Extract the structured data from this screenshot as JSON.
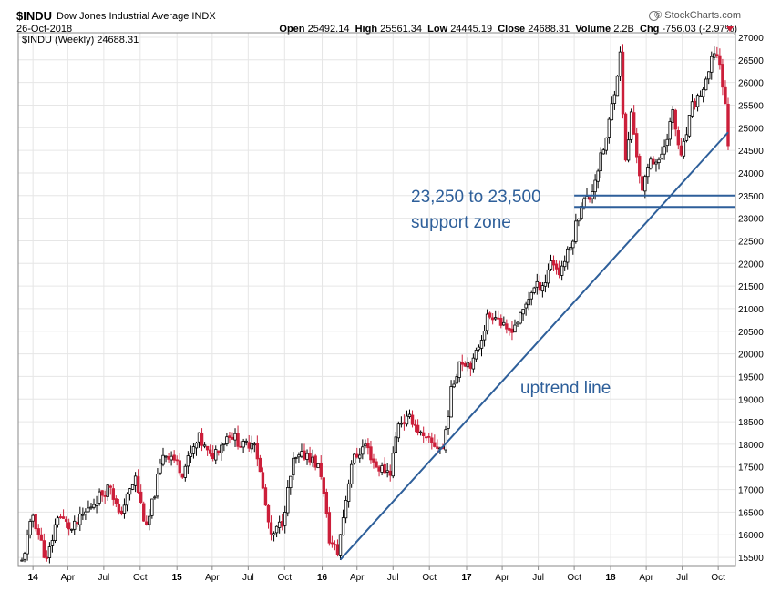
{
  "header": {
    "symbol": "$INDU",
    "name": "Dow Jones Industrial Average INDX",
    "date": "26-Oct-2018",
    "brand": "© StockCharts.com",
    "stats": [
      {
        "label": "Open",
        "value": "25492.14"
      },
      {
        "label": "High",
        "value": "25561.34"
      },
      {
        "label": "Low",
        "value": "24445.19"
      },
      {
        "label": "Close",
        "value": "24688.31"
      },
      {
        "label": "Volume",
        "value": "2.2B"
      },
      {
        "label": "Chg",
        "value": "-756.03 (-2.97%)"
      }
    ]
  },
  "colors": {
    "up": "#000000",
    "down": "#cc1f3a",
    "annotation": "#2e5f9a",
    "grid": "#e6e6e6"
  },
  "chart_data": {
    "type": "candlestick",
    "legend": "$INDU (Weekly) 24688.31",
    "ylim": [
      15300,
      27100
    ],
    "y_ticks": [
      15500,
      16000,
      16500,
      17000,
      17500,
      18000,
      18500,
      19000,
      19500,
      20000,
      20500,
      21000,
      21500,
      22000,
      22500,
      23000,
      23500,
      24000,
      24500,
      25000,
      25500,
      26000,
      26500,
      27000
    ],
    "x_range": [
      "2013-12-06",
      "2018-10-26"
    ],
    "x_ticks": [
      {
        "label": "14",
        "date": "2014-01-03"
      },
      {
        "label": "Apr",
        "date": "2014-04-01"
      },
      {
        "label": "Jul",
        "date": "2014-07-01"
      },
      {
        "label": "Oct",
        "date": "2014-10-01"
      },
      {
        "label": "15",
        "date": "2015-01-02"
      },
      {
        "label": "Apr",
        "date": "2015-04-01"
      },
      {
        "label": "Jul",
        "date": "2015-07-01"
      },
      {
        "label": "Oct",
        "date": "2015-10-01"
      },
      {
        "label": "16",
        "date": "2016-01-04"
      },
      {
        "label": "Apr",
        "date": "2016-04-01"
      },
      {
        "label": "Jul",
        "date": "2016-07-01"
      },
      {
        "label": "Oct",
        "date": "2016-10-01"
      },
      {
        "label": "17",
        "date": "2017-01-03"
      },
      {
        "label": "Apr",
        "date": "2017-04-03"
      },
      {
        "label": "Jul",
        "date": "2017-07-03"
      },
      {
        "label": "Oct",
        "date": "2017-10-02"
      },
      {
        "label": "18",
        "date": "2018-01-02"
      },
      {
        "label": "Apr",
        "date": "2018-04-02"
      },
      {
        "label": "Jul",
        "date": "2018-07-02"
      },
      {
        "label": "Oct",
        "date": "2018-10-01"
      }
    ],
    "price_path": [
      [
        "2013-12-06",
        15400
      ],
      [
        "2014-01-03",
        16440
      ],
      [
        "2014-02-07",
        15400
      ],
      [
        "2014-03-07",
        16450
      ],
      [
        "2014-04-11",
        16100
      ],
      [
        "2014-06-13",
        16800
      ],
      [
        "2014-07-18",
        17100
      ],
      [
        "2014-08-08",
        16400
      ],
      [
        "2014-09-19",
        17250
      ],
      [
        "2014-10-17",
        16100
      ],
      [
        "2014-11-28",
        17800
      ],
      [
        "2014-12-19",
        17750
      ],
      [
        "2015-01-16",
        17400
      ],
      [
        "2015-02-27",
        18130
      ],
      [
        "2015-03-27",
        17700
      ],
      [
        "2015-05-15",
        18250
      ],
      [
        "2015-06-19",
        17950
      ],
      [
        "2015-07-17",
        18100
      ],
      [
        "2015-08-28",
        15900
      ],
      [
        "2015-09-25",
        16300
      ],
      [
        "2015-10-23",
        17600
      ],
      [
        "2015-11-27",
        17800
      ],
      [
        "2015-12-31",
        17425
      ],
      [
        "2016-01-22",
        15900
      ],
      [
        "2016-02-12",
        15600
      ],
      [
        "2016-03-18",
        17600
      ],
      [
        "2016-04-22",
        18000
      ],
      [
        "2016-05-20",
        17500
      ],
      [
        "2016-06-24",
        17400
      ],
      [
        "2016-07-15",
        18500
      ],
      [
        "2016-08-19",
        18550
      ],
      [
        "2016-09-16",
        18100
      ],
      [
        "2016-11-04",
        17900
      ],
      [
        "2016-11-25",
        19150
      ],
      [
        "2016-12-16",
        19850
      ],
      [
        "2017-01-20",
        19800
      ],
      [
        "2017-02-24",
        20800
      ],
      [
        "2017-03-17",
        20900
      ],
      [
        "2017-04-14",
        20450
      ],
      [
        "2017-05-19",
        20800
      ],
      [
        "2017-06-16",
        21400
      ],
      [
        "2017-07-21",
        21600
      ],
      [
        "2017-08-04",
        22100
      ],
      [
        "2017-08-25",
        21800
      ],
      [
        "2017-09-22",
        22350
      ],
      [
        "2017-10-20",
        23350
      ],
      [
        "2017-11-10",
        23450
      ],
      [
        "2017-12-22",
        24750
      ],
      [
        "2018-01-26",
        26600
      ],
      [
        "2018-02-09",
        24200
      ],
      [
        "2018-02-23",
        25300
      ],
      [
        "2018-03-23",
        23550
      ],
      [
        "2018-04-13",
        24350
      ],
      [
        "2018-05-04",
        24200
      ],
      [
        "2018-06-08",
        25300
      ],
      [
        "2018-06-29",
        24300
      ],
      [
        "2018-07-27",
        25450
      ],
      [
        "2018-08-31",
        25950
      ],
      [
        "2018-09-21",
        26700
      ],
      [
        "2018-10-05",
        26450
      ],
      [
        "2018-10-19",
        25450
      ],
      [
        "2018-10-26",
        24688
      ]
    ],
    "annotations": [
      {
        "type": "trendline",
        "label": "uptrend line",
        "start": [
          "2016-02-19",
          15450
        ],
        "end": [
          "2018-10-26",
          24900
        ]
      },
      {
        "type": "hline",
        "label": "23,250 to 23,500 support zone",
        "value": 23500,
        "from": "2017-10-02",
        "to": "2018-10-26"
      },
      {
        "type": "hline",
        "value": 23250,
        "from": "2017-10-02",
        "to": "2018-10-26"
      }
    ],
    "annotation_text": {
      "support_line1": "23,250 to 23,500",
      "support_line2": "support zone",
      "uptrend": "uptrend line"
    }
  }
}
